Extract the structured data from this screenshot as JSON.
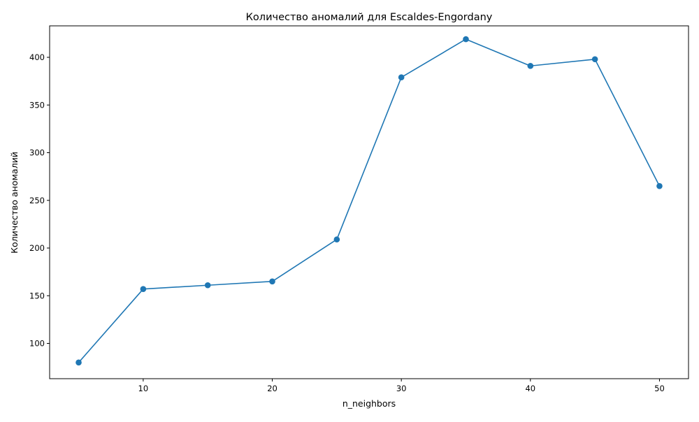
{
  "chart_data": {
    "type": "line",
    "title": "Количество аномалий для Escaldes-Engordany",
    "xlabel": "n_neighbors",
    "ylabel": "Количество аномалий",
    "x": [
      5,
      10,
      15,
      20,
      25,
      30,
      35,
      40,
      45,
      50
    ],
    "series": [
      {
        "values": [
          80,
          157,
          161,
          165,
          209,
          379,
          419,
          391,
          398,
          265
        ],
        "color": "#1f77b4",
        "marker": "circle"
      }
    ],
    "xlim": [
      2.75,
      52.25
    ],
    "ylim": [
      63,
      433
    ],
    "xticks": [
      10,
      20,
      30,
      40,
      50
    ],
    "yticks": [
      100,
      150,
      200,
      250,
      300,
      350,
      400
    ],
    "grid": false,
    "legend": "none"
  }
}
